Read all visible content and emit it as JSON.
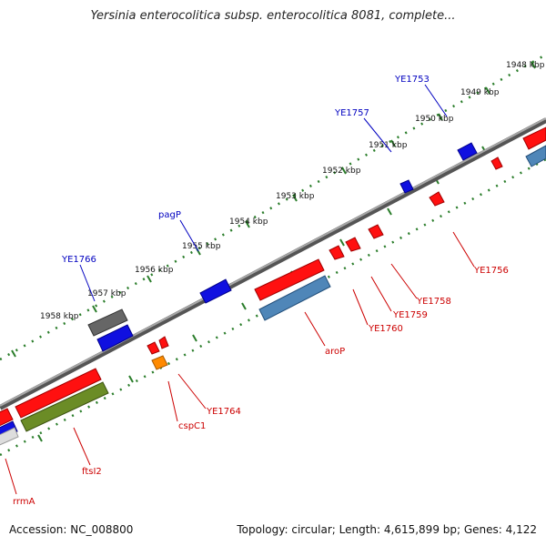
{
  "title": "Yersinia enterocolitica subsp. enterocolitica 8081, complete...",
  "footer": {
    "accession": "Accession: NC_008800",
    "topology": "Topology: circular; Length: 4,615,899 bp; Genes: 4,122"
  },
  "colors": {
    "forward_gene": "#ff0000",
    "forward_other": "#1010e0",
    "reverse_gene": "#4f86b8",
    "reverse_rna": "#6b8c26",
    "pseudo": "#666666",
    "orange": "#ff8a00",
    "ruler": "#2a7d2a",
    "backbone": "#888888",
    "label_forward": "#0000c0",
    "label_reverse": "#cc0000"
  },
  "ruler_labels": [
    "1948 kbp",
    "1949 kbp",
    "1950 kbp",
    "1951 kbp",
    "1952 kbp",
    "1953 kbp",
    "1954 kbp",
    "1955 kbp",
    "1956 kbp",
    "1957 kbp",
    "1958 kbp"
  ],
  "labels_forward": [
    "YE1753",
    "YE1757",
    "pagP",
    "YE1766"
  ],
  "labels_reverse": [
    "YE1756",
    "YE1758",
    "YE1759",
    "YE1760",
    "aroP",
    "YE1764",
    "cspC1",
    "ftsI2",
    "rrmA"
  ]
}
